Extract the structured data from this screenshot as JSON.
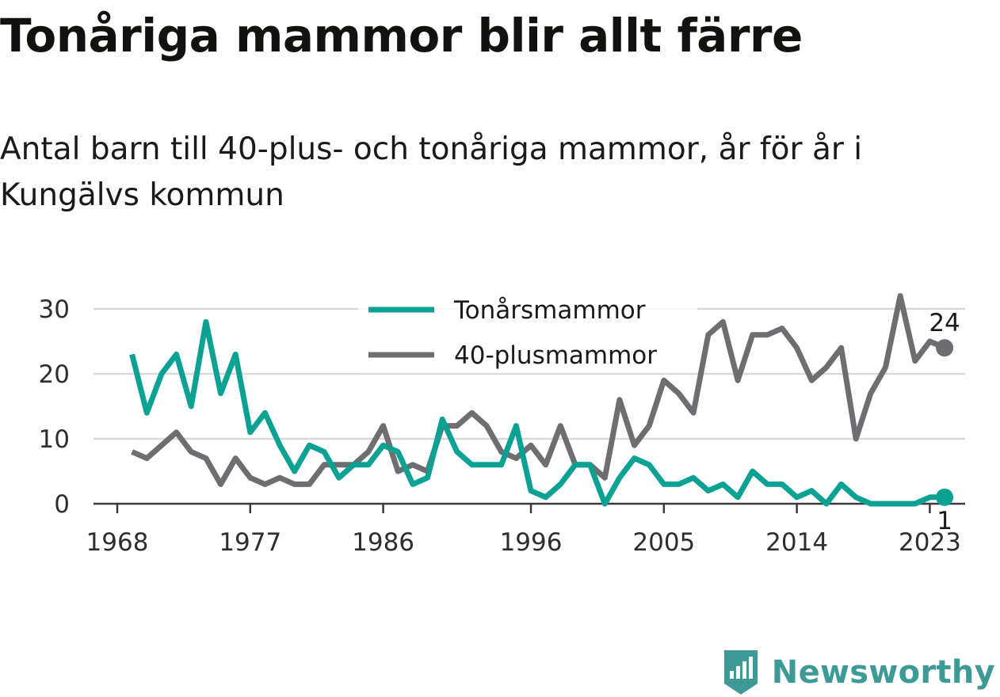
{
  "title": "Tonåriga mammor blir allt färre",
  "subtitle": "Antal barn till 40-plus- och tonåriga mammor, år för år i Kungälvs kommun",
  "brand": {
    "name": "Newsworthy",
    "icon": "newsworthy-logo-icon",
    "color": "#3d9a96"
  },
  "chart_data": {
    "type": "line",
    "x": [
      1969,
      1970,
      1971,
      1972,
      1973,
      1974,
      1975,
      1976,
      1977,
      1978,
      1979,
      1980,
      1981,
      1982,
      1983,
      1984,
      1985,
      1986,
      1987,
      1988,
      1989,
      1990,
      1991,
      1992,
      1993,
      1994,
      1995,
      1996,
      1997,
      1998,
      1999,
      2000,
      2001,
      2002,
      2003,
      2004,
      2005,
      2006,
      2007,
      2008,
      2009,
      2010,
      2011,
      2012,
      2013,
      2014,
      2015,
      2016,
      2017,
      2018,
      2019,
      2020,
      2021,
      2022,
      2023,
      2024
    ],
    "xticks": [
      1968,
      1977,
      1986,
      1996,
      2005,
      2014,
      2023
    ],
    "yticks": [
      0,
      10,
      20,
      30
    ],
    "xlim": [
      1968,
      2027
    ],
    "ylim": [
      0,
      30
    ],
    "grid": true,
    "legend": "top-center",
    "series": [
      {
        "name": "Tonårsmammor",
        "color": "#0ba294",
        "values": [
          23,
          14,
          20,
          23,
          15,
          28,
          17,
          23,
          11,
          14,
          9,
          5,
          9,
          8,
          4,
          6,
          6,
          9,
          8,
          3,
          4,
          13,
          8,
          6,
          6,
          6,
          12,
          2,
          1,
          3,
          6,
          6,
          0,
          4,
          7,
          6,
          3,
          3,
          4,
          2,
          3,
          1,
          5,
          3,
          3,
          1,
          2,
          0,
          3,
          1,
          0,
          0,
          0,
          0,
          1,
          1
        ],
        "end_label": "1"
      },
      {
        "name": "40-plusmammor",
        "color": "#6d6d72",
        "values": [
          8,
          7,
          9,
          11,
          8,
          7,
          3,
          7,
          4,
          3,
          4,
          3,
          3,
          6,
          6,
          6,
          8,
          12,
          5,
          6,
          5,
          12,
          12,
          14,
          12,
          8,
          7,
          9,
          6,
          12,
          6,
          6,
          4,
          16,
          9,
          12,
          19,
          17,
          14,
          26,
          28,
          19,
          26,
          26,
          27,
          24,
          19,
          21,
          24,
          10,
          17,
          21,
          32,
          22,
          25,
          24
        ],
        "end_label": "24"
      }
    ]
  }
}
